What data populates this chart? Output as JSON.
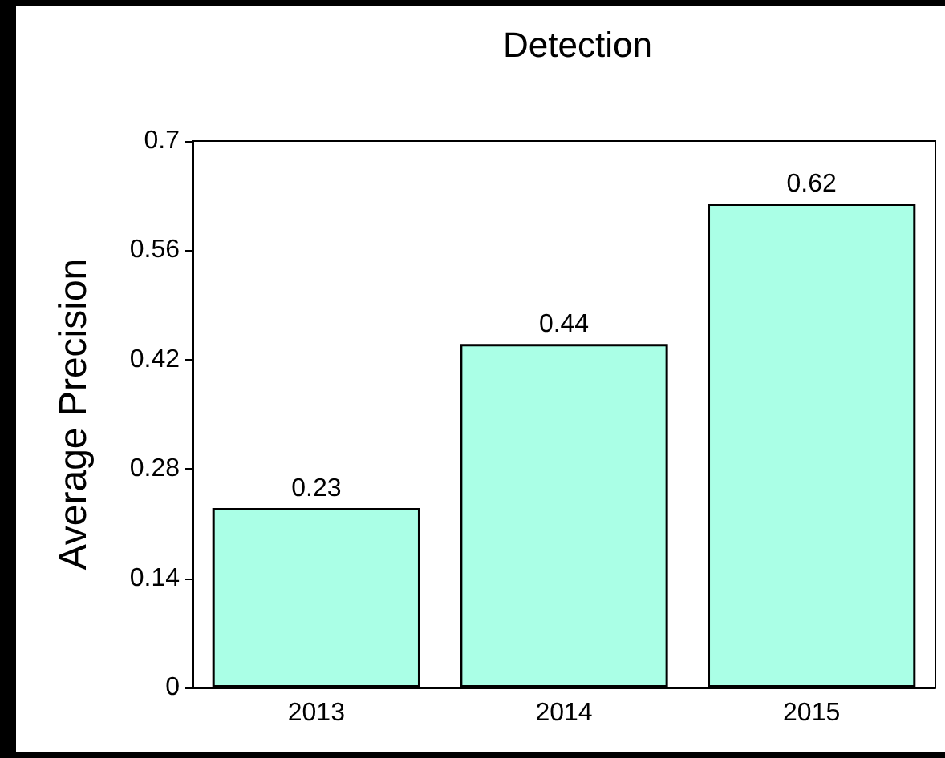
{
  "chart_data": {
    "type": "bar",
    "title": "Detection",
    "ylabel": "Average Precision",
    "categories": [
      "2013",
      "2014",
      "2015"
    ],
    "series": [
      {
        "color": "#aaffe6",
        "values": [
          0.23,
          0.44,
          0.62
        ]
      }
    ],
    "ylim": [
      0,
      0.7
    ],
    "yticks": [
      0,
      0.14,
      0.28,
      0.42,
      0.56,
      0.7
    ],
    "grid": false,
    "data_labels": true
  }
}
